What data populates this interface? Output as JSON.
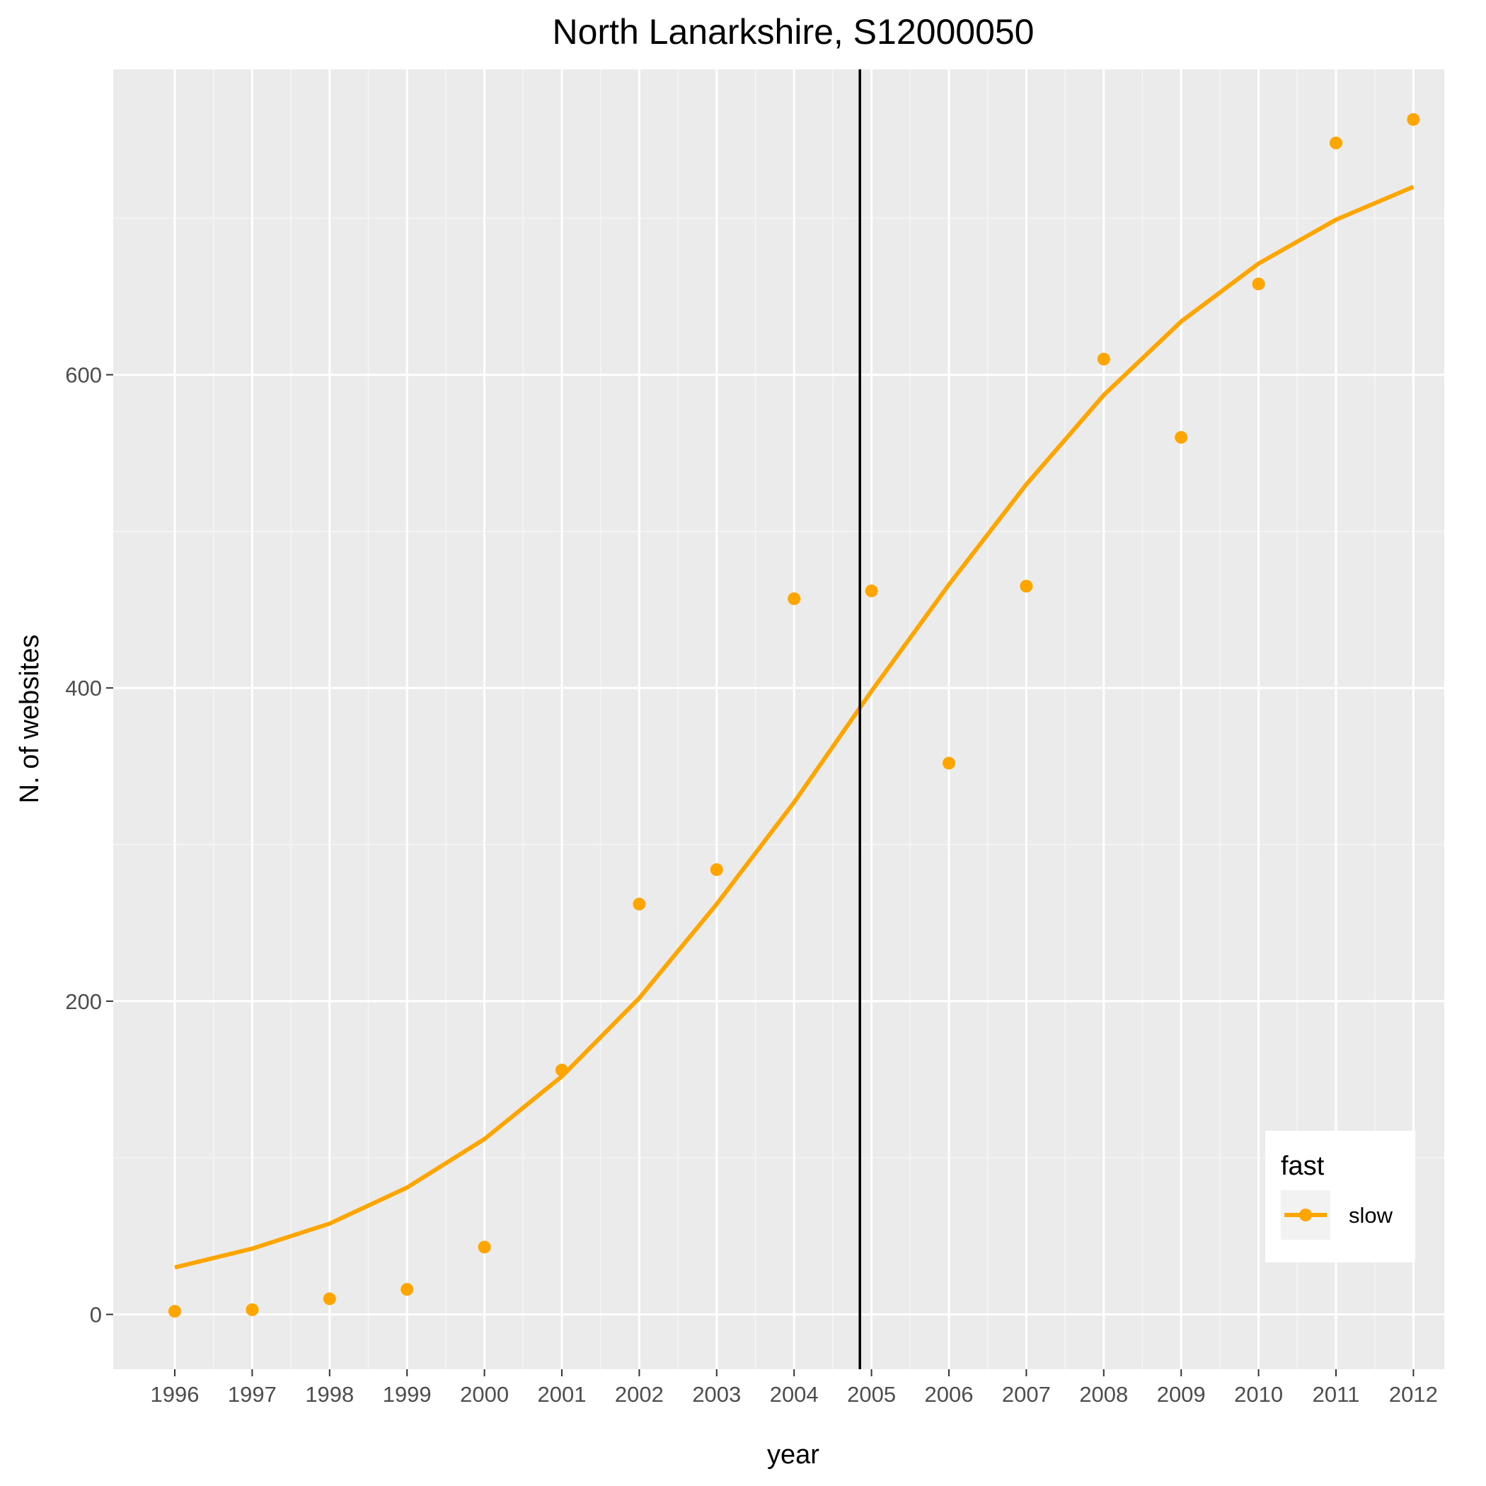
{
  "chart_data": {
    "type": "scatter",
    "title": "North Lanarkshire, S12000050",
    "xlabel": "year",
    "ylabel": "N. of websites",
    "x_categories": [
      "1996",
      "1997",
      "1998",
      "1999",
      "2000",
      "2001",
      "2002",
      "2003",
      "2004",
      "2005",
      "2006",
      "2007",
      "2008",
      "2009",
      "2010",
      "2011",
      "2012"
    ],
    "ylim": [
      -35,
      795
    ],
    "y_ticks": [
      0,
      200,
      400,
      600
    ],
    "grid": true,
    "legend": {
      "title": "fast",
      "position": "right-bottom"
    },
    "series": [
      {
        "name": "slow",
        "color": "#FFA500",
        "points": [
          2,
          3,
          10,
          16,
          43,
          156,
          262,
          284,
          457,
          462,
          352,
          465,
          610,
          560,
          658,
          748,
          763
        ],
        "trend": [
          30,
          42,
          58,
          81,
          112,
          152,
          202,
          262,
          327,
          398,
          466,
          530,
          587,
          634,
          671,
          699,
          720
        ]
      }
    ],
    "reference_line": {
      "x": 2004.85,
      "color": "#000000"
    }
  }
}
